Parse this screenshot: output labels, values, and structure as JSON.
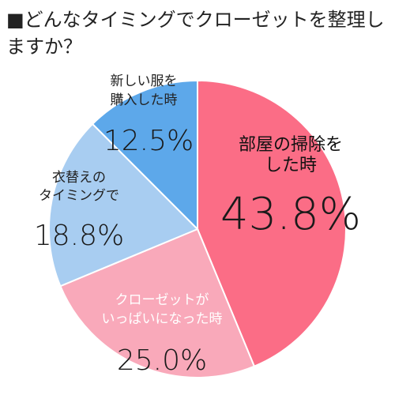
{
  "title": "■どんなタイミングでクローゼットを整理しますか？",
  "chart_data": {
    "type": "pie",
    "start_angle_deg": 0,
    "direction": "clockwise",
    "slices": [
      {
        "label_lines": [
          "部屋の掃除を",
          "した時"
        ],
        "value": 43.8,
        "value_label": "43.8%",
        "color": "#fb6d86"
      },
      {
        "label_lines": [
          "クローゼットが",
          "いっぱいになった時"
        ],
        "value": 25.0,
        "value_label": "25.0%",
        "color": "#f9a9ba"
      },
      {
        "label_lines": [
          "衣替えの",
          "タイミングで"
        ],
        "value": 18.8,
        "value_label": "18.8%",
        "color": "#a8cdf1"
      },
      {
        "label_lines": [
          "新しい服を",
          "購入した時"
        ],
        "value": 12.5,
        "value_label": "12.5%",
        "color": "#5da8ea"
      }
    ]
  }
}
